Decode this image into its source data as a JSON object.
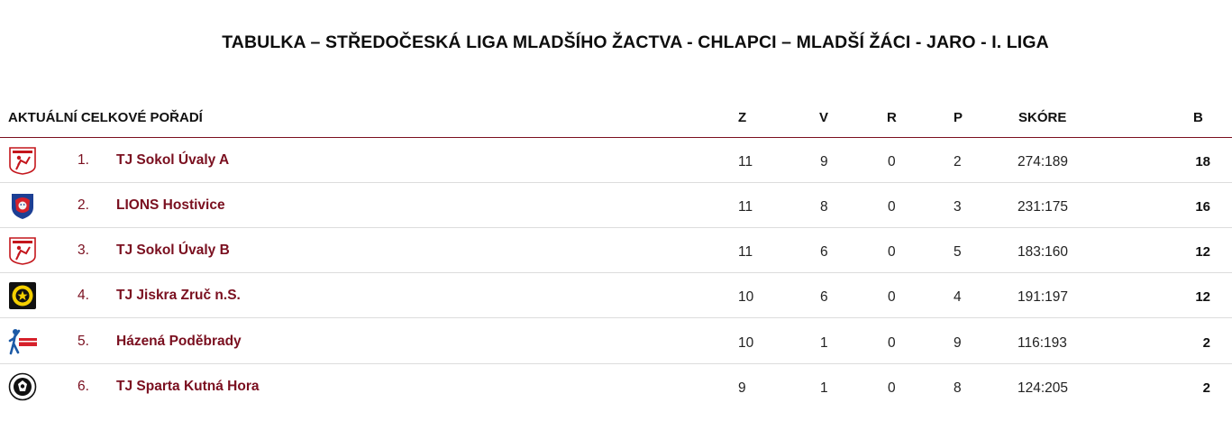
{
  "title": "TABULKA – STŘEDOČESKÁ LIGA MLADŠÍHO ŽACTVA - CHLAPCI – MLADŠÍ ŽÁCI - JARO - I. LIGA",
  "table": {
    "section_label": "AKTUÁLNÍ CELKOVÉ POŘADÍ",
    "columns": {
      "z": "Z",
      "v": "V",
      "r": "R",
      "p": "P",
      "score": "SKÓRE",
      "b": "B"
    },
    "rows": [
      {
        "rank": "1.",
        "team": "TJ Sokol Úvaly A",
        "z": "11",
        "v": "9",
        "r": "0",
        "p": "2",
        "score": "274:189",
        "b": "18",
        "logo": "sokol-uvaly-logo"
      },
      {
        "rank": "2.",
        "team": "LIONS Hostivice",
        "z": "11",
        "v": "8",
        "r": "0",
        "p": "3",
        "score": "231:175",
        "b": "16",
        "logo": "lions-hostivice-logo"
      },
      {
        "rank": "3.",
        "team": "TJ Sokol Úvaly B",
        "z": "11",
        "v": "6",
        "r": "0",
        "p": "5",
        "score": "183:160",
        "b": "12",
        "logo": "sokol-uvaly-logo"
      },
      {
        "rank": "4.",
        "team": "TJ Jiskra Zruč n.S.",
        "z": "10",
        "v": "6",
        "r": "0",
        "p": "4",
        "score": "191:197",
        "b": "12",
        "logo": "jiskra-zruc-logo"
      },
      {
        "rank": "5.",
        "team": "Házená Poděbrady",
        "z": "10",
        "v": "1",
        "r": "0",
        "p": "9",
        "score": "116:193",
        "b": "2",
        "logo": "hazena-podebrady-logo"
      },
      {
        "rank": "6.",
        "team": "TJ Sparta Kutná Hora",
        "z": "9",
        "v": "1",
        "r": "0",
        "p": "8",
        "score": "124:205",
        "b": "2",
        "logo": "sparta-kutna-hora-logo"
      }
    ]
  },
  "colors": {
    "accent": "#7a0f1f",
    "divider": "#dcdcdc"
  }
}
